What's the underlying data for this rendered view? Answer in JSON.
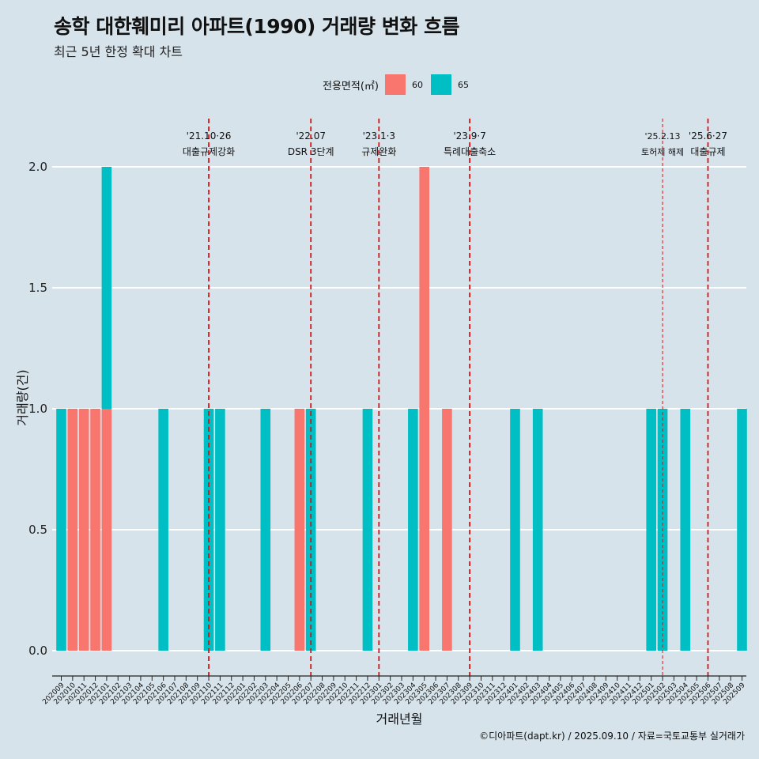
{
  "title": "송학 대한훼미리 아파트(1990) 거래량 변화 흐름",
  "subtitle": "최근 5년 한정 확대 차트",
  "caption": "©디아파트(dapt.kr) / 2025.09.10 / 자료=국토교통부 실거래가",
  "legend": {
    "title": "전용면적(㎡)",
    "items": [
      {
        "label": "60",
        "color": "#F8766D"
      },
      {
        "label": "65",
        "color": "#00BFC4"
      }
    ]
  },
  "chart_data": {
    "type": "bar",
    "xlabel": "거래년월",
    "ylabel": "거래량(건)",
    "ylim": [
      0,
      2
    ],
    "yticks": [
      "0.0",
      "0.5",
      "1.0",
      "1.5",
      "2.0"
    ],
    "categories": [
      "202009",
      "202010",
      "202011",
      "202012",
      "202101",
      "202102",
      "202103",
      "202104",
      "202105",
      "202106",
      "202107",
      "202108",
      "202109",
      "202110",
      "202111",
      "202112",
      "202201",
      "202202",
      "202203",
      "202204",
      "202205",
      "202206",
      "202207",
      "202208",
      "202209",
      "202210",
      "202211",
      "202212",
      "202301",
      "202302",
      "202303",
      "202304",
      "202305",
      "202306",
      "202307",
      "202308",
      "202309",
      "202310",
      "202311",
      "202312",
      "202401",
      "202402",
      "202403",
      "202404",
      "202405",
      "202406",
      "202407",
      "202408",
      "202409",
      "202410",
      "202411",
      "202412",
      "202501",
      "202502",
      "202503",
      "202504",
      "202505",
      "202506",
      "202507",
      "202508",
      "202509"
    ],
    "series": [
      {
        "name": "60",
        "color": "#F8766D",
        "values": [
          0,
          1,
          1,
          1,
          1,
          0,
          0,
          0,
          0,
          0,
          0,
          0,
          0,
          0,
          0,
          0,
          0,
          0,
          0,
          0,
          0,
          1,
          0,
          0,
          0,
          0,
          0,
          0,
          0,
          0,
          0,
          0,
          2,
          0,
          1,
          0,
          0,
          0,
          0,
          0,
          0,
          0,
          0,
          0,
          0,
          0,
          0,
          0,
          0,
          0,
          0,
          0,
          0,
          0,
          0,
          0,
          0,
          0,
          0,
          0,
          0
        ]
      },
      {
        "name": "65",
        "color": "#00BFC4",
        "values": [
          1,
          0,
          0,
          0,
          1,
          0,
          0,
          0,
          0,
          1,
          0,
          0,
          0,
          1,
          1,
          0,
          0,
          0,
          1,
          0,
          0,
          0,
          1,
          0,
          0,
          0,
          0,
          1,
          0,
          0,
          0,
          1,
          0,
          0,
          0,
          0,
          0,
          0,
          0,
          0,
          1,
          0,
          1,
          0,
          0,
          0,
          0,
          0,
          0,
          0,
          0,
          0,
          1,
          1,
          0,
          1,
          0,
          0,
          0,
          0,
          1
        ]
      }
    ],
    "events": [
      {
        "date": "'21.10·26",
        "label": "대출규제강화",
        "month": "202110"
      },
      {
        "date": "'22.07",
        "label": "DSR 3단계",
        "month": "202207"
      },
      {
        "date": "'23.1·3",
        "label": "규제완화",
        "month": "202301"
      },
      {
        "date": "'23.9·7",
        "label": "특례대출축소",
        "month": "202309"
      },
      {
        "date": "'25.2.13",
        "label": "토허제 해제",
        "month": "202502"
      },
      {
        "date": "'25.6·27",
        "label": "대출규제",
        "month": "202506"
      }
    ]
  }
}
